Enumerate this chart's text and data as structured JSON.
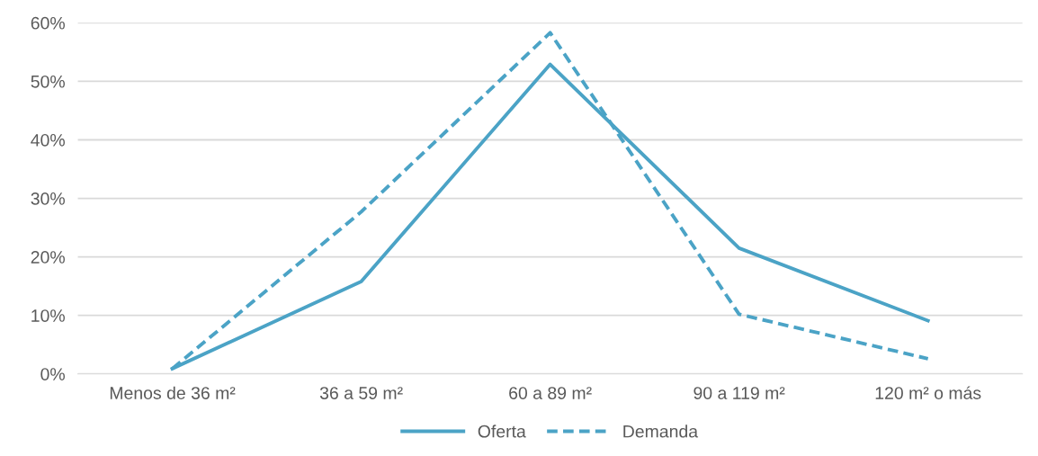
{
  "chart_data": {
    "type": "line",
    "categories": [
      "Menos de 36 m²",
      "36 a 59 m²",
      "60 a 89 m²",
      "90 a 119 m²",
      "120 m² o más"
    ],
    "series": [
      {
        "name": "Oferta",
        "color": "#4ba3c6",
        "line_style": "solid",
        "values": [
          0.9,
          15.8,
          52.9,
          21.5,
          9.1
        ]
      },
      {
        "name": "Demanda",
        "color": "#4ba3c6",
        "line_style": "dashed",
        "values": [
          0.9,
          27.7,
          58.3,
          10.2,
          2.6
        ]
      }
    ],
    "ylim": [
      0,
      60
    ],
    "yticks": [
      {
        "value": 0,
        "label": "0%"
      },
      {
        "value": 10,
        "label": "10%"
      },
      {
        "value": 20,
        "label": "20%"
      },
      {
        "value": 30,
        "label": "30%"
      },
      {
        "value": 40,
        "label": "40%"
      },
      {
        "value": 50,
        "label": "50%"
      },
      {
        "value": 60,
        "label": "60%"
      }
    ],
    "grid": "y",
    "legend": "bottom",
    "marker": "none"
  }
}
